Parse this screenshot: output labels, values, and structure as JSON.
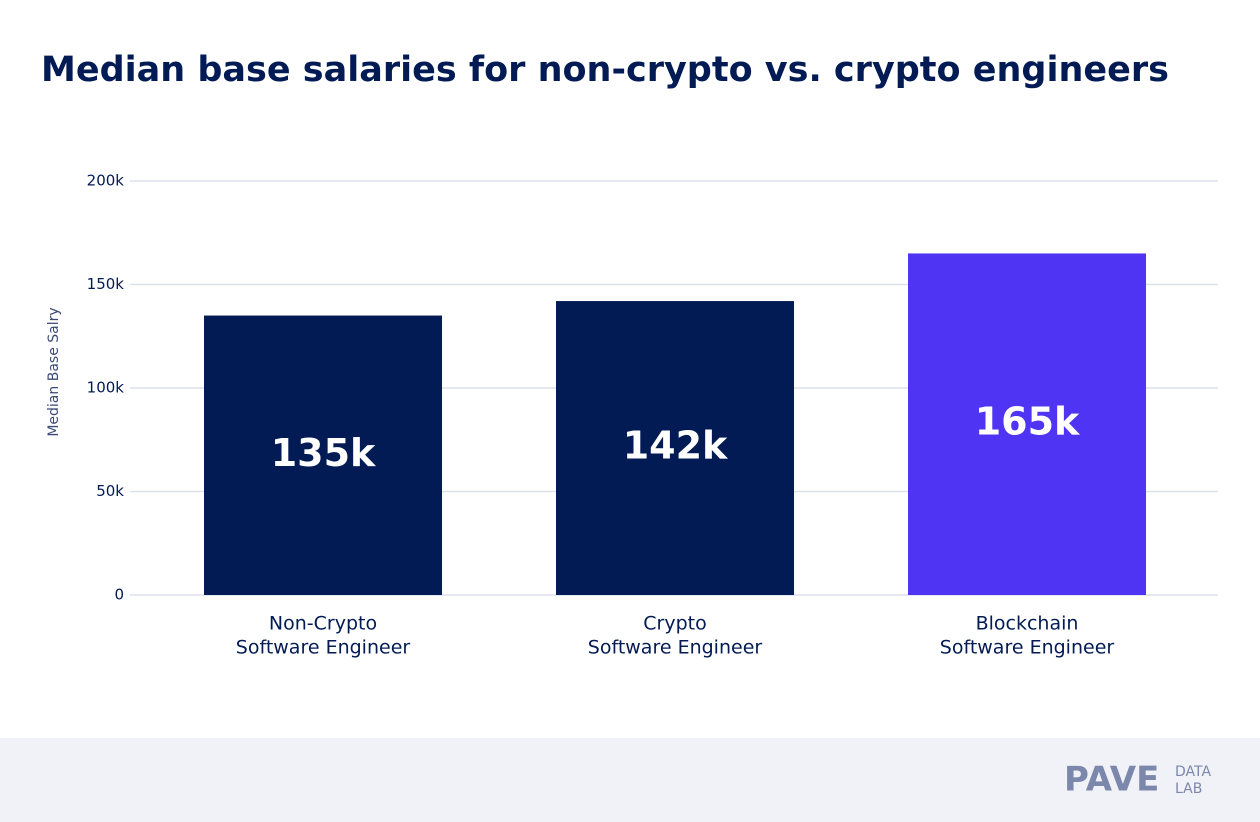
{
  "chart_data": {
    "type": "bar",
    "title": "Median base salaries for non-crypto vs. crypto engineers",
    "y_label": "Median Base Salry",
    "categories": [
      [
        "Non-Crypto",
        "Software Engineer"
      ],
      [
        "Crypto",
        "Software Engineer"
      ],
      [
        "Blockchain",
        "Software Engineer"
      ]
    ],
    "values": [
      135000,
      142000,
      165000
    ],
    "value_labels": [
      "135k",
      "142k",
      "165k"
    ],
    "colors": [
      "#021b54",
      "#021b54",
      "#4f35f3"
    ],
    "ylim": [
      0,
      200000
    ],
    "yticks": [
      0,
      {
        "value": 50000,
        "label": "50k"
      },
      {
        "value": 100000,
        "label": "100k"
      },
      {
        "value": 150000,
        "label": "150k"
      },
      {
        "value": 200000,
        "label": "200k"
      }
    ],
    "grid": true
  },
  "footer": {
    "brand": "PAVE",
    "sub": [
      "DATA",
      "LAB"
    ]
  }
}
